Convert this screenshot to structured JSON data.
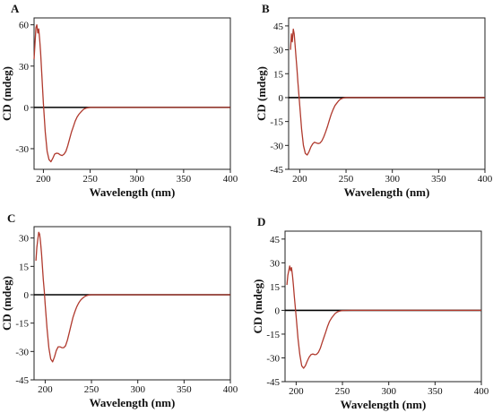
{
  "chart_data": [
    {
      "panel": "A",
      "type": "line",
      "xlabel": "Wavelength (nm)",
      "ylabel": "CD (mdeg)",
      "xlim": [
        190,
        400
      ],
      "ylim": [
        -45,
        65
      ],
      "xticks": [
        200,
        250,
        300,
        350,
        400
      ],
      "yticks": [
        -30,
        0,
        30,
        60
      ],
      "zero_line": true,
      "grid": false,
      "series": [
        {
          "color": "#b03a2e",
          "x": [
            190,
            192,
            193,
            194,
            195,
            196,
            197,
            198,
            200,
            202,
            204,
            206,
            208,
            210,
            212,
            214,
            216,
            218,
            220,
            222,
            224,
            226,
            228,
            230,
            232,
            234,
            236,
            238,
            240,
            242,
            244,
            246,
            248,
            250,
            260,
            280,
            300,
            350,
            400
          ],
          "y": [
            35,
            58,
            60,
            54,
            57,
            49,
            40,
            28,
            3,
            -18,
            -32,
            -38,
            -39.5,
            -37,
            -34,
            -33.3,
            -33.5,
            -34.5,
            -35,
            -34,
            -32,
            -28,
            -23,
            -18,
            -14,
            -10,
            -7,
            -5,
            -3.5,
            -2,
            -1,
            -0.5,
            -0.2,
            0,
            0,
            0,
            0,
            0,
            0
          ]
        }
      ]
    },
    {
      "panel": "B",
      "type": "line",
      "xlabel": "Wavelength (nm)",
      "ylabel": "CD (mdeg)",
      "xlim": [
        188,
        400
      ],
      "ylim": [
        -45,
        50
      ],
      "xticks": [
        200,
        250,
        300,
        350,
        400
      ],
      "yticks": [
        -45,
        -30,
        -15,
        0,
        15,
        30,
        45
      ],
      "zero_line": true,
      "grid": false,
      "series": [
        {
          "color": "#b03a2e",
          "x": [
            190,
            191,
            192,
            193,
            194,
            195,
            196,
            197,
            198,
            200,
            202,
            204,
            206,
            208,
            210,
            212,
            214,
            216,
            218,
            220,
            222,
            224,
            226,
            228,
            230,
            232,
            234,
            236,
            238,
            240,
            242,
            244,
            246,
            248,
            250,
            260,
            300,
            350,
            400
          ],
          "y": [
            30,
            40,
            35,
            43,
            40,
            33,
            25,
            18,
            10,
            -5,
            -20,
            -30,
            -35,
            -36,
            -34,
            -31,
            -29,
            -28,
            -28.5,
            -28.8,
            -28.5,
            -27,
            -24.5,
            -21.5,
            -18,
            -14,
            -10.5,
            -7.5,
            -5,
            -3.5,
            -2,
            -1,
            -0.5,
            -0.2,
            0,
            0,
            0,
            0,
            0
          ]
        }
      ]
    },
    {
      "panel": "C",
      "type": "line",
      "xlabel": "Wavelength (nm)",
      "ylabel": "CD (mdeg)",
      "xlim": [
        188,
        400
      ],
      "ylim": [
        -45,
        36
      ],
      "xticks": [
        200,
        250,
        300,
        350,
        400
      ],
      "yticks": [
        -45,
        -30,
        -15,
        0,
        15,
        30
      ],
      "zero_line": true,
      "grid": false,
      "series": [
        {
          "color": "#b03a2e",
          "x": [
            190,
            191,
            192,
            193,
            194,
            195,
            196,
            197,
            198,
            199,
            200,
            202,
            204,
            206,
            208,
            210,
            212,
            214,
            216,
            218,
            220,
            222,
            224,
            226,
            228,
            230,
            232,
            234,
            236,
            238,
            240,
            242,
            244,
            246,
            248,
            250,
            260,
            300,
            350,
            400
          ],
          "y": [
            18,
            25,
            29,
            33,
            32,
            28,
            22,
            15,
            8,
            2,
            -5,
            -18,
            -28,
            -34,
            -35.5,
            -33,
            -29.5,
            -27.5,
            -27.5,
            -28,
            -28,
            -27,
            -24,
            -20,
            -16,
            -12,
            -9,
            -6.5,
            -4.5,
            -3,
            -2,
            -1.2,
            -0.6,
            -0.3,
            -0.1,
            0,
            0,
            0,
            0,
            0
          ]
        }
      ]
    },
    {
      "panel": "D",
      "type": "line",
      "xlabel": "Wavelength (nm)",
      "ylabel": "CD (mdeg)",
      "xlim": [
        188,
        400
      ],
      "ylim": [
        -45,
        50
      ],
      "xticks": [
        200,
        250,
        300,
        350,
        400
      ],
      "yticks": [
        -45,
        -30,
        -15,
        0,
        15,
        30,
        45
      ],
      "zero_line": true,
      "grid": false,
      "series": [
        {
          "color": "#b03a2e",
          "x": [
            190,
            191,
            192,
            193,
            194,
            195,
            196,
            197,
            198,
            200,
            202,
            204,
            206,
            208,
            210,
            212,
            214,
            216,
            218,
            220,
            222,
            224,
            226,
            228,
            230,
            232,
            234,
            236,
            238,
            240,
            242,
            244,
            246,
            248,
            250,
            260,
            300,
            350,
            400
          ],
          "y": [
            16,
            22,
            25,
            28,
            25,
            27,
            22,
            16,
            9,
            -4,
            -18,
            -28,
            -35,
            -36.5,
            -35,
            -32,
            -29.5,
            -28,
            -27.5,
            -28,
            -27.8,
            -26.5,
            -24,
            -20.5,
            -17,
            -13.5,
            -10,
            -7,
            -5,
            -3.5,
            -2,
            -1.2,
            -0.6,
            -0.3,
            -0.1,
            0,
            0,
            0,
            0
          ]
        }
      ]
    }
  ]
}
